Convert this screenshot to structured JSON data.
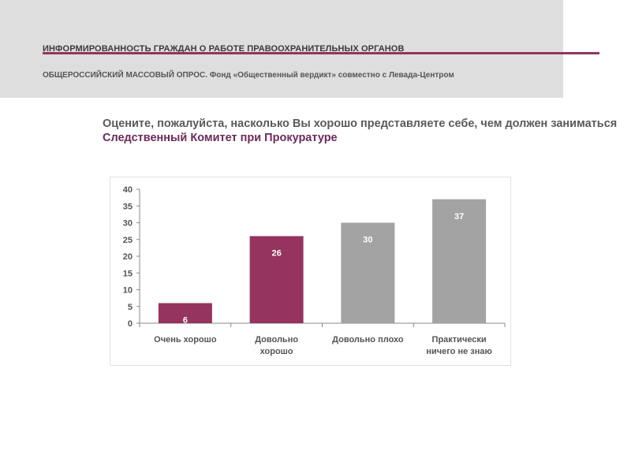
{
  "header": {
    "title": "ИНФОРМИРОВАННОСТЬ ГРАЖДАН О РАБОТЕ ПРАВООХРАНИТЕЛЬНЫХ ОРГАНОВ",
    "subtitle": "ОБЩЕРОССИЙСКИЙ МАССОВЫЙ ОПРОС. Фонд «Общественный вердикт» совместно с Левада-Центром",
    "accent_color": "#95345f"
  },
  "question": {
    "text_plain": "Оцените, пожалуйста, насколько Вы хорошо представляете себе, чем должен заниматься ",
    "text_accent": "Следственный Комитет при Прокуратуре"
  },
  "chart_data": {
    "type": "bar",
    "categories": [
      [
        "Очень хорошо"
      ],
      [
        "Довольно",
        "хорошо"
      ],
      [
        "Довольно плохо"
      ],
      [
        "Практически",
        "ничего не знаю"
      ]
    ],
    "values": [
      6,
      26,
      30,
      37
    ],
    "data_labels": [
      "6",
      "26",
      "30",
      "37"
    ],
    "bar_colors": [
      "#95345f",
      "#95345f",
      "#a3a3a3",
      "#a3a3a3"
    ],
    "ylim": [
      0,
      40
    ],
    "yticks": [
      0,
      5,
      10,
      15,
      20,
      25,
      30,
      35,
      40
    ],
    "grid": false,
    "legend": "none"
  }
}
